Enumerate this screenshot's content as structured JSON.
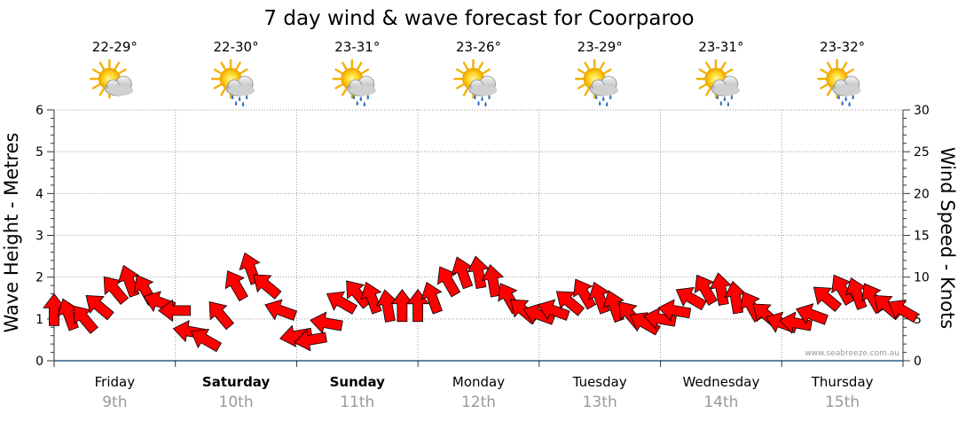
{
  "chart_data": {
    "type": "line",
    "title": "7 day wind & wave forecast for Coorparoo",
    "ylabel": "Wave Height - Metres",
    "y2label": "Wind Speed - Knots",
    "ylim": [
      0,
      6
    ],
    "y2lim": [
      0,
      30
    ],
    "yticks": [
      "0",
      "1",
      "2",
      "3",
      "4",
      "5",
      "6"
    ],
    "y2ticks": [
      "0",
      "5",
      "10",
      "15",
      "20",
      "25",
      "30"
    ],
    "grid": true,
    "days": [
      {
        "name": "Friday",
        "date": "9th",
        "temp": "22-29°",
        "icon": "partly-cloudy-icon",
        "weekend": false
      },
      {
        "name": "Saturday",
        "date": "10th",
        "temp": "22-30°",
        "icon": "showers-icon",
        "weekend": true
      },
      {
        "name": "Sunday",
        "date": "11th",
        "temp": "23-31°",
        "icon": "showers-icon",
        "weekend": true
      },
      {
        "name": "Monday",
        "date": "12th",
        "temp": "23-26°",
        "icon": "showers-icon",
        "weekend": false
      },
      {
        "name": "Tuesday",
        "date": "13th",
        "temp": "23-29°",
        "icon": "showers-icon",
        "weekend": false
      },
      {
        "name": "Wednesday",
        "date": "14th",
        "temp": "23-31°",
        "icon": "showers-icon",
        "weekend": false
      },
      {
        "name": "Thursday",
        "date": "15th",
        "temp": "23-32°",
        "icon": "showers-icon",
        "weekend": false
      }
    ],
    "series": [
      {
        "unit": "knots",
        "color": "#ff0000",
        "stroke": "#000000",
        "x_day": [
          0.0,
          0.12,
          0.25,
          0.37,
          0.5,
          0.62,
          0.75,
          0.87,
          1.0,
          1.12,
          1.25,
          1.37,
          1.5,
          1.62,
          1.75,
          1.87,
          2.0,
          2.12,
          2.25,
          2.37,
          2.5,
          2.62,
          2.75,
          2.87,
          3.0,
          3.12,
          3.25,
          3.37,
          3.5,
          3.62,
          3.75,
          3.87,
          4.0,
          4.12,
          4.25,
          4.37,
          4.5,
          4.62,
          4.75,
          4.87,
          5.0,
          5.12,
          5.25,
          5.37,
          5.5,
          5.62,
          5.75,
          5.87,
          6.0,
          6.12,
          6.25,
          6.37,
          6.5,
          6.62,
          6.75,
          6.87,
          7.0
        ],
        "values": [
          6.0,
          5.5,
          5.0,
          6.5,
          8.5,
          9.5,
          8.5,
          7.0,
          6.0,
          3.5,
          2.5,
          5.5,
          9.0,
          11.0,
          9.0,
          6.0,
          3.0,
          2.5,
          4.5,
          7.0,
          8.0,
          7.5,
          6.5,
          6.5,
          6.5,
          7.5,
          9.5,
          10.5,
          10.5,
          9.5,
          7.5,
          6.0,
          5.5,
          6.0,
          7.0,
          8.0,
          7.5,
          6.5,
          5.5,
          4.5,
          5.0,
          6.0,
          7.5,
          8.5,
          8.5,
          7.5,
          6.5,
          5.5,
          4.5,
          4.5,
          5.5,
          7.5,
          8.5,
          8.0,
          7.5,
          6.5,
          6.0
        ],
        "directions_deg": [
          270,
          250,
          230,
          220,
          230,
          250,
          240,
          200,
          180,
          190,
          210,
          230,
          240,
          250,
          220,
          200,
          170,
          170,
          190,
          210,
          230,
          250,
          260,
          270,
          270,
          250,
          240,
          250,
          260,
          260,
          240,
          220,
          200,
          200,
          220,
          240,
          250,
          250,
          230,
          210,
          190,
          190,
          210,
          240,
          260,
          260,
          240,
          220,
          200,
          190,
          200,
          220,
          240,
          250,
          240,
          220,
          210
        ]
      }
    ],
    "watermark": "www.seabreeze.com.au"
  }
}
